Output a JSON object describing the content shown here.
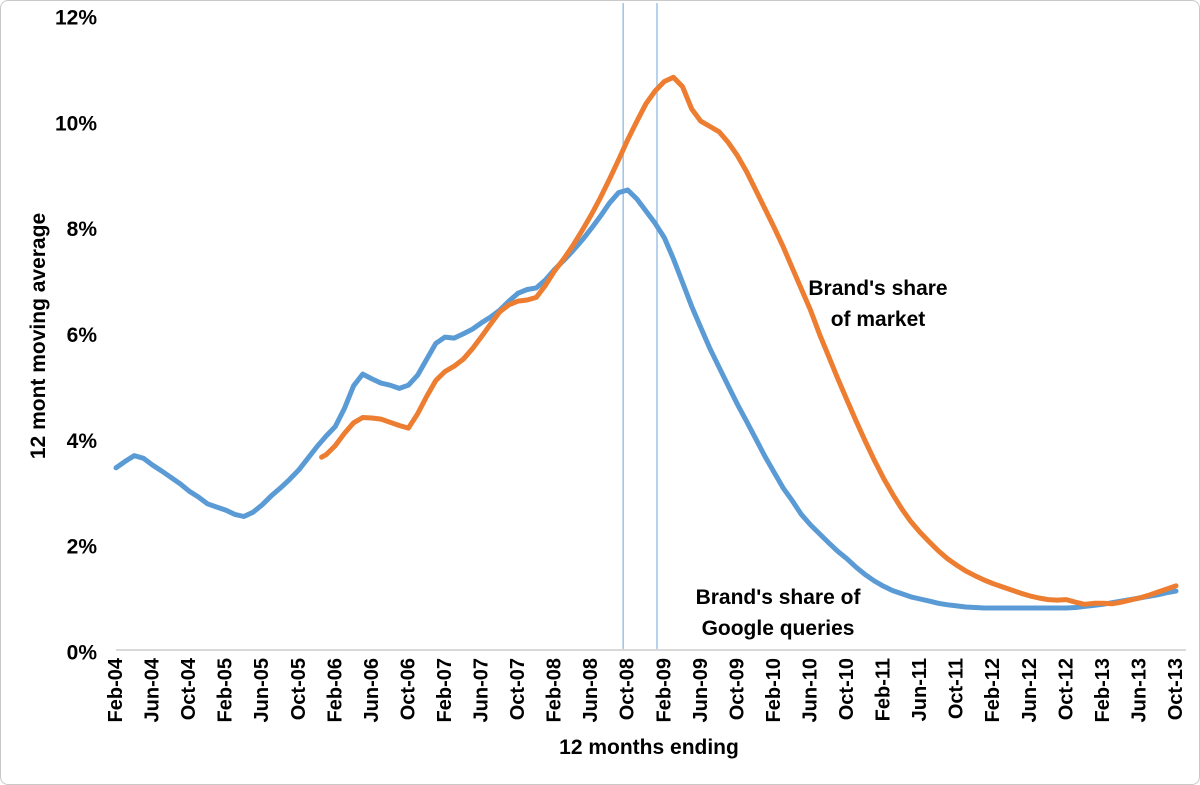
{
  "figure": {
    "background_color": "#ffffff",
    "border_color": "#c9c9c9"
  },
  "chart_data": {
    "type": "line",
    "title": "",
    "xlabel": "12 months ending",
    "ylabel": "12 mont moving average",
    "x_unit": "months since Feb-04",
    "ylim": [
      0,
      12
    ],
    "grid": "off",
    "legend": "none (series labeled by in-plot annotations)",
    "y_ticks": [
      {
        "value": 0,
        "label": "0%"
      },
      {
        "value": 2,
        "label": "2%"
      },
      {
        "value": 4,
        "label": "4%"
      },
      {
        "value": 6,
        "label": "6%"
      },
      {
        "value": 8,
        "label": "8%"
      },
      {
        "value": 10,
        "label": "10%"
      },
      {
        "value": 12,
        "label": "12%"
      }
    ],
    "x_ticks": [
      {
        "month": 0,
        "label": "Feb-04"
      },
      {
        "month": 4,
        "label": "Jun-04"
      },
      {
        "month": 8,
        "label": "Oct-04"
      },
      {
        "month": 12,
        "label": "Feb-05"
      },
      {
        "month": 16,
        "label": "Jun-05"
      },
      {
        "month": 20,
        "label": "Oct-05"
      },
      {
        "month": 24,
        "label": "Feb-06"
      },
      {
        "month": 28,
        "label": "Jun-06"
      },
      {
        "month": 32,
        "label": "Oct-06"
      },
      {
        "month": 36,
        "label": "Feb-07"
      },
      {
        "month": 40,
        "label": "Jun-07"
      },
      {
        "month": 44,
        "label": "Oct-07"
      },
      {
        "month": 48,
        "label": "Feb-08"
      },
      {
        "month": 52,
        "label": "Jun-08"
      },
      {
        "month": 56,
        "label": "Oct-08"
      },
      {
        "month": 60,
        "label": "Feb-09"
      },
      {
        "month": 64,
        "label": "Jun-09"
      },
      {
        "month": 68,
        "label": "Oct-09"
      },
      {
        "month": 72,
        "label": "Feb-10"
      },
      {
        "month": 76,
        "label": "Jun-10"
      },
      {
        "month": 80,
        "label": "Oct-10"
      },
      {
        "month": 84,
        "label": "Feb-11"
      },
      {
        "month": 88,
        "label": "Jun-11"
      },
      {
        "month": 92,
        "label": "Oct-11"
      },
      {
        "month": 96,
        "label": "Feb-12"
      },
      {
        "month": 100,
        "label": "Jun-12"
      },
      {
        "month": 104,
        "label": "Oct-12"
      },
      {
        "month": 108,
        "label": "Feb-13"
      },
      {
        "month": 112,
        "label": "Jun-13"
      },
      {
        "month": 116,
        "label": "Oct-13"
      }
    ],
    "reference_lines": {
      "color": "#9dc3e6",
      "x_months": [
        55.5,
        59.2
      ]
    },
    "axis_line_color": "#d9d9d9",
    "series": [
      {
        "name": "Brand's share of Google queries",
        "color": "#5B9BD5",
        "points": [
          [
            0,
            3.5
          ],
          [
            1,
            3.62
          ],
          [
            2,
            3.73
          ],
          [
            3,
            3.68
          ],
          [
            4,
            3.55
          ],
          [
            5,
            3.44
          ],
          [
            6,
            3.32
          ],
          [
            7,
            3.2
          ],
          [
            8,
            3.06
          ],
          [
            9,
            2.95
          ],
          [
            10,
            2.82
          ],
          [
            11,
            2.76
          ],
          [
            12,
            2.7
          ],
          [
            13,
            2.62
          ],
          [
            14,
            2.58
          ],
          [
            15,
            2.66
          ],
          [
            16,
            2.8
          ],
          [
            17,
            2.97
          ],
          [
            18,
            3.12
          ],
          [
            19,
            3.28
          ],
          [
            20,
            3.46
          ],
          [
            21,
            3.68
          ],
          [
            22,
            3.9
          ],
          [
            23,
            4.1
          ],
          [
            24,
            4.28
          ],
          [
            25,
            4.62
          ],
          [
            26,
            5.05
          ],
          [
            27,
            5.27
          ],
          [
            28,
            5.18
          ],
          [
            29,
            5.1
          ],
          [
            30,
            5.06
          ],
          [
            31,
            5.0
          ],
          [
            32,
            5.06
          ],
          [
            33,
            5.25
          ],
          [
            34,
            5.55
          ],
          [
            35,
            5.85
          ],
          [
            36,
            5.97
          ],
          [
            37,
            5.95
          ],
          [
            38,
            6.03
          ],
          [
            39,
            6.12
          ],
          [
            40,
            6.24
          ],
          [
            41,
            6.35
          ],
          [
            42,
            6.48
          ],
          [
            43,
            6.65
          ],
          [
            44,
            6.8
          ],
          [
            45,
            6.87
          ],
          [
            46,
            6.9
          ],
          [
            47,
            7.05
          ],
          [
            48,
            7.25
          ],
          [
            49,
            7.42
          ],
          [
            50,
            7.6
          ],
          [
            51,
            7.8
          ],
          [
            52,
            8.02
          ],
          [
            53,
            8.25
          ],
          [
            54,
            8.5
          ],
          [
            55,
            8.7
          ],
          [
            56,
            8.75
          ],
          [
            57,
            8.58
          ],
          [
            58,
            8.35
          ],
          [
            59,
            8.12
          ],
          [
            60,
            7.85
          ],
          [
            61,
            7.45
          ],
          [
            62,
            7.0
          ],
          [
            63,
            6.55
          ],
          [
            64,
            6.15
          ],
          [
            65,
            5.75
          ],
          [
            66,
            5.4
          ],
          [
            67,
            5.05
          ],
          [
            68,
            4.7
          ],
          [
            69,
            4.38
          ],
          [
            70,
            4.05
          ],
          [
            71,
            3.72
          ],
          [
            72,
            3.42
          ],
          [
            73,
            3.12
          ],
          [
            74,
            2.88
          ],
          [
            75,
            2.62
          ],
          [
            76,
            2.42
          ],
          [
            77,
            2.25
          ],
          [
            78,
            2.08
          ],
          [
            79,
            1.92
          ],
          [
            80,
            1.78
          ],
          [
            81,
            1.62
          ],
          [
            82,
            1.48
          ],
          [
            83,
            1.36
          ],
          [
            84,
            1.26
          ],
          [
            85,
            1.18
          ],
          [
            86,
            1.12
          ],
          [
            87,
            1.06
          ],
          [
            88,
            1.02
          ],
          [
            89,
            0.98
          ],
          [
            90,
            0.94
          ],
          [
            91,
            0.91
          ],
          [
            92,
            0.89
          ],
          [
            93,
            0.87
          ],
          [
            94,
            0.86
          ],
          [
            95,
            0.85
          ],
          [
            96,
            0.85
          ],
          [
            97,
            0.85
          ],
          [
            98,
            0.85
          ],
          [
            99,
            0.85
          ],
          [
            100,
            0.85
          ],
          [
            101,
            0.85
          ],
          [
            102,
            0.85
          ],
          [
            103,
            0.85
          ],
          [
            104,
            0.85
          ],
          [
            105,
            0.86
          ],
          [
            106,
            0.88
          ],
          [
            107,
            0.9
          ],
          [
            108,
            0.92
          ],
          [
            109,
            0.95
          ],
          [
            110,
            0.98
          ],
          [
            111,
            1.01
          ],
          [
            112,
            1.04
          ],
          [
            113,
            1.07
          ],
          [
            114,
            1.1
          ],
          [
            115,
            1.14
          ],
          [
            116,
            1.17
          ]
        ]
      },
      {
        "name": "Brand's share of market",
        "color": "#ED7D31",
        "points": [
          [
            22.5,
            3.7
          ],
          [
            23,
            3.75
          ],
          [
            24,
            3.92
          ],
          [
            25,
            4.15
          ],
          [
            26,
            4.35
          ],
          [
            27,
            4.45
          ],
          [
            28,
            4.44
          ],
          [
            29,
            4.42
          ],
          [
            30,
            4.36
          ],
          [
            31,
            4.3
          ],
          [
            32,
            4.25
          ],
          [
            33,
            4.52
          ],
          [
            34,
            4.85
          ],
          [
            35,
            5.15
          ],
          [
            36,
            5.32
          ],
          [
            37,
            5.42
          ],
          [
            38,
            5.55
          ],
          [
            39,
            5.75
          ],
          [
            40,
            5.98
          ],
          [
            41,
            6.22
          ],
          [
            42,
            6.45
          ],
          [
            43,
            6.58
          ],
          [
            44,
            6.65
          ],
          [
            45,
            6.67
          ],
          [
            46,
            6.72
          ],
          [
            47,
            6.95
          ],
          [
            48,
            7.22
          ],
          [
            49,
            7.45
          ],
          [
            50,
            7.7
          ],
          [
            51,
            7.98
          ],
          [
            52,
            8.28
          ],
          [
            53,
            8.6
          ],
          [
            54,
            8.95
          ],
          [
            55,
            9.32
          ],
          [
            56,
            9.7
          ],
          [
            57,
            10.05
          ],
          [
            58,
            10.38
          ],
          [
            59,
            10.62
          ],
          [
            60,
            10.8
          ],
          [
            61,
            10.88
          ],
          [
            62,
            10.7
          ],
          [
            63,
            10.28
          ],
          [
            64,
            10.05
          ],
          [
            65,
            9.95
          ],
          [
            66,
            9.85
          ],
          [
            67,
            9.65
          ],
          [
            68,
            9.4
          ],
          [
            69,
            9.1
          ],
          [
            70,
            8.75
          ],
          [
            71,
            8.4
          ],
          [
            72,
            8.05
          ],
          [
            73,
            7.68
          ],
          [
            74,
            7.28
          ],
          [
            75,
            6.88
          ],
          [
            76,
            6.48
          ],
          [
            77,
            6.02
          ],
          [
            78,
            5.6
          ],
          [
            79,
            5.18
          ],
          [
            80,
            4.78
          ],
          [
            81,
            4.38
          ],
          [
            82,
            4.0
          ],
          [
            83,
            3.64
          ],
          [
            84,
            3.3
          ],
          [
            85,
            3.0
          ],
          [
            86,
            2.72
          ],
          [
            87,
            2.48
          ],
          [
            88,
            2.28
          ],
          [
            89,
            2.1
          ],
          [
            90,
            1.93
          ],
          [
            91,
            1.78
          ],
          [
            92,
            1.66
          ],
          [
            93,
            1.55
          ],
          [
            94,
            1.46
          ],
          [
            95,
            1.38
          ],
          [
            96,
            1.31
          ],
          [
            97,
            1.25
          ],
          [
            98,
            1.19
          ],
          [
            99,
            1.13
          ],
          [
            100,
            1.08
          ],
          [
            101,
            1.04
          ],
          [
            102,
            1.01
          ],
          [
            103,
            1.0
          ],
          [
            104,
            1.01
          ],
          [
            105,
            0.96
          ],
          [
            106,
            0.92
          ],
          [
            107,
            0.94
          ],
          [
            108,
            0.94
          ],
          [
            109,
            0.93
          ],
          [
            110,
            0.96
          ],
          [
            111,
            1.0
          ],
          [
            112,
            1.04
          ],
          [
            113,
            1.09
          ],
          [
            114,
            1.15
          ],
          [
            115,
            1.21
          ],
          [
            116,
            1.27
          ]
        ]
      }
    ],
    "annotations": [
      {
        "lines": [
          "Brand's share",
          "of market"
        ],
        "series": "Brand's share of market",
        "at_month": 83.4,
        "at_value": 6.6
      },
      {
        "lines": [
          "Brand's share of",
          "Google queries"
        ],
        "series": "Brand's share of Google queries",
        "at_month": 72.4,
        "at_value": 0.76
      }
    ]
  }
}
